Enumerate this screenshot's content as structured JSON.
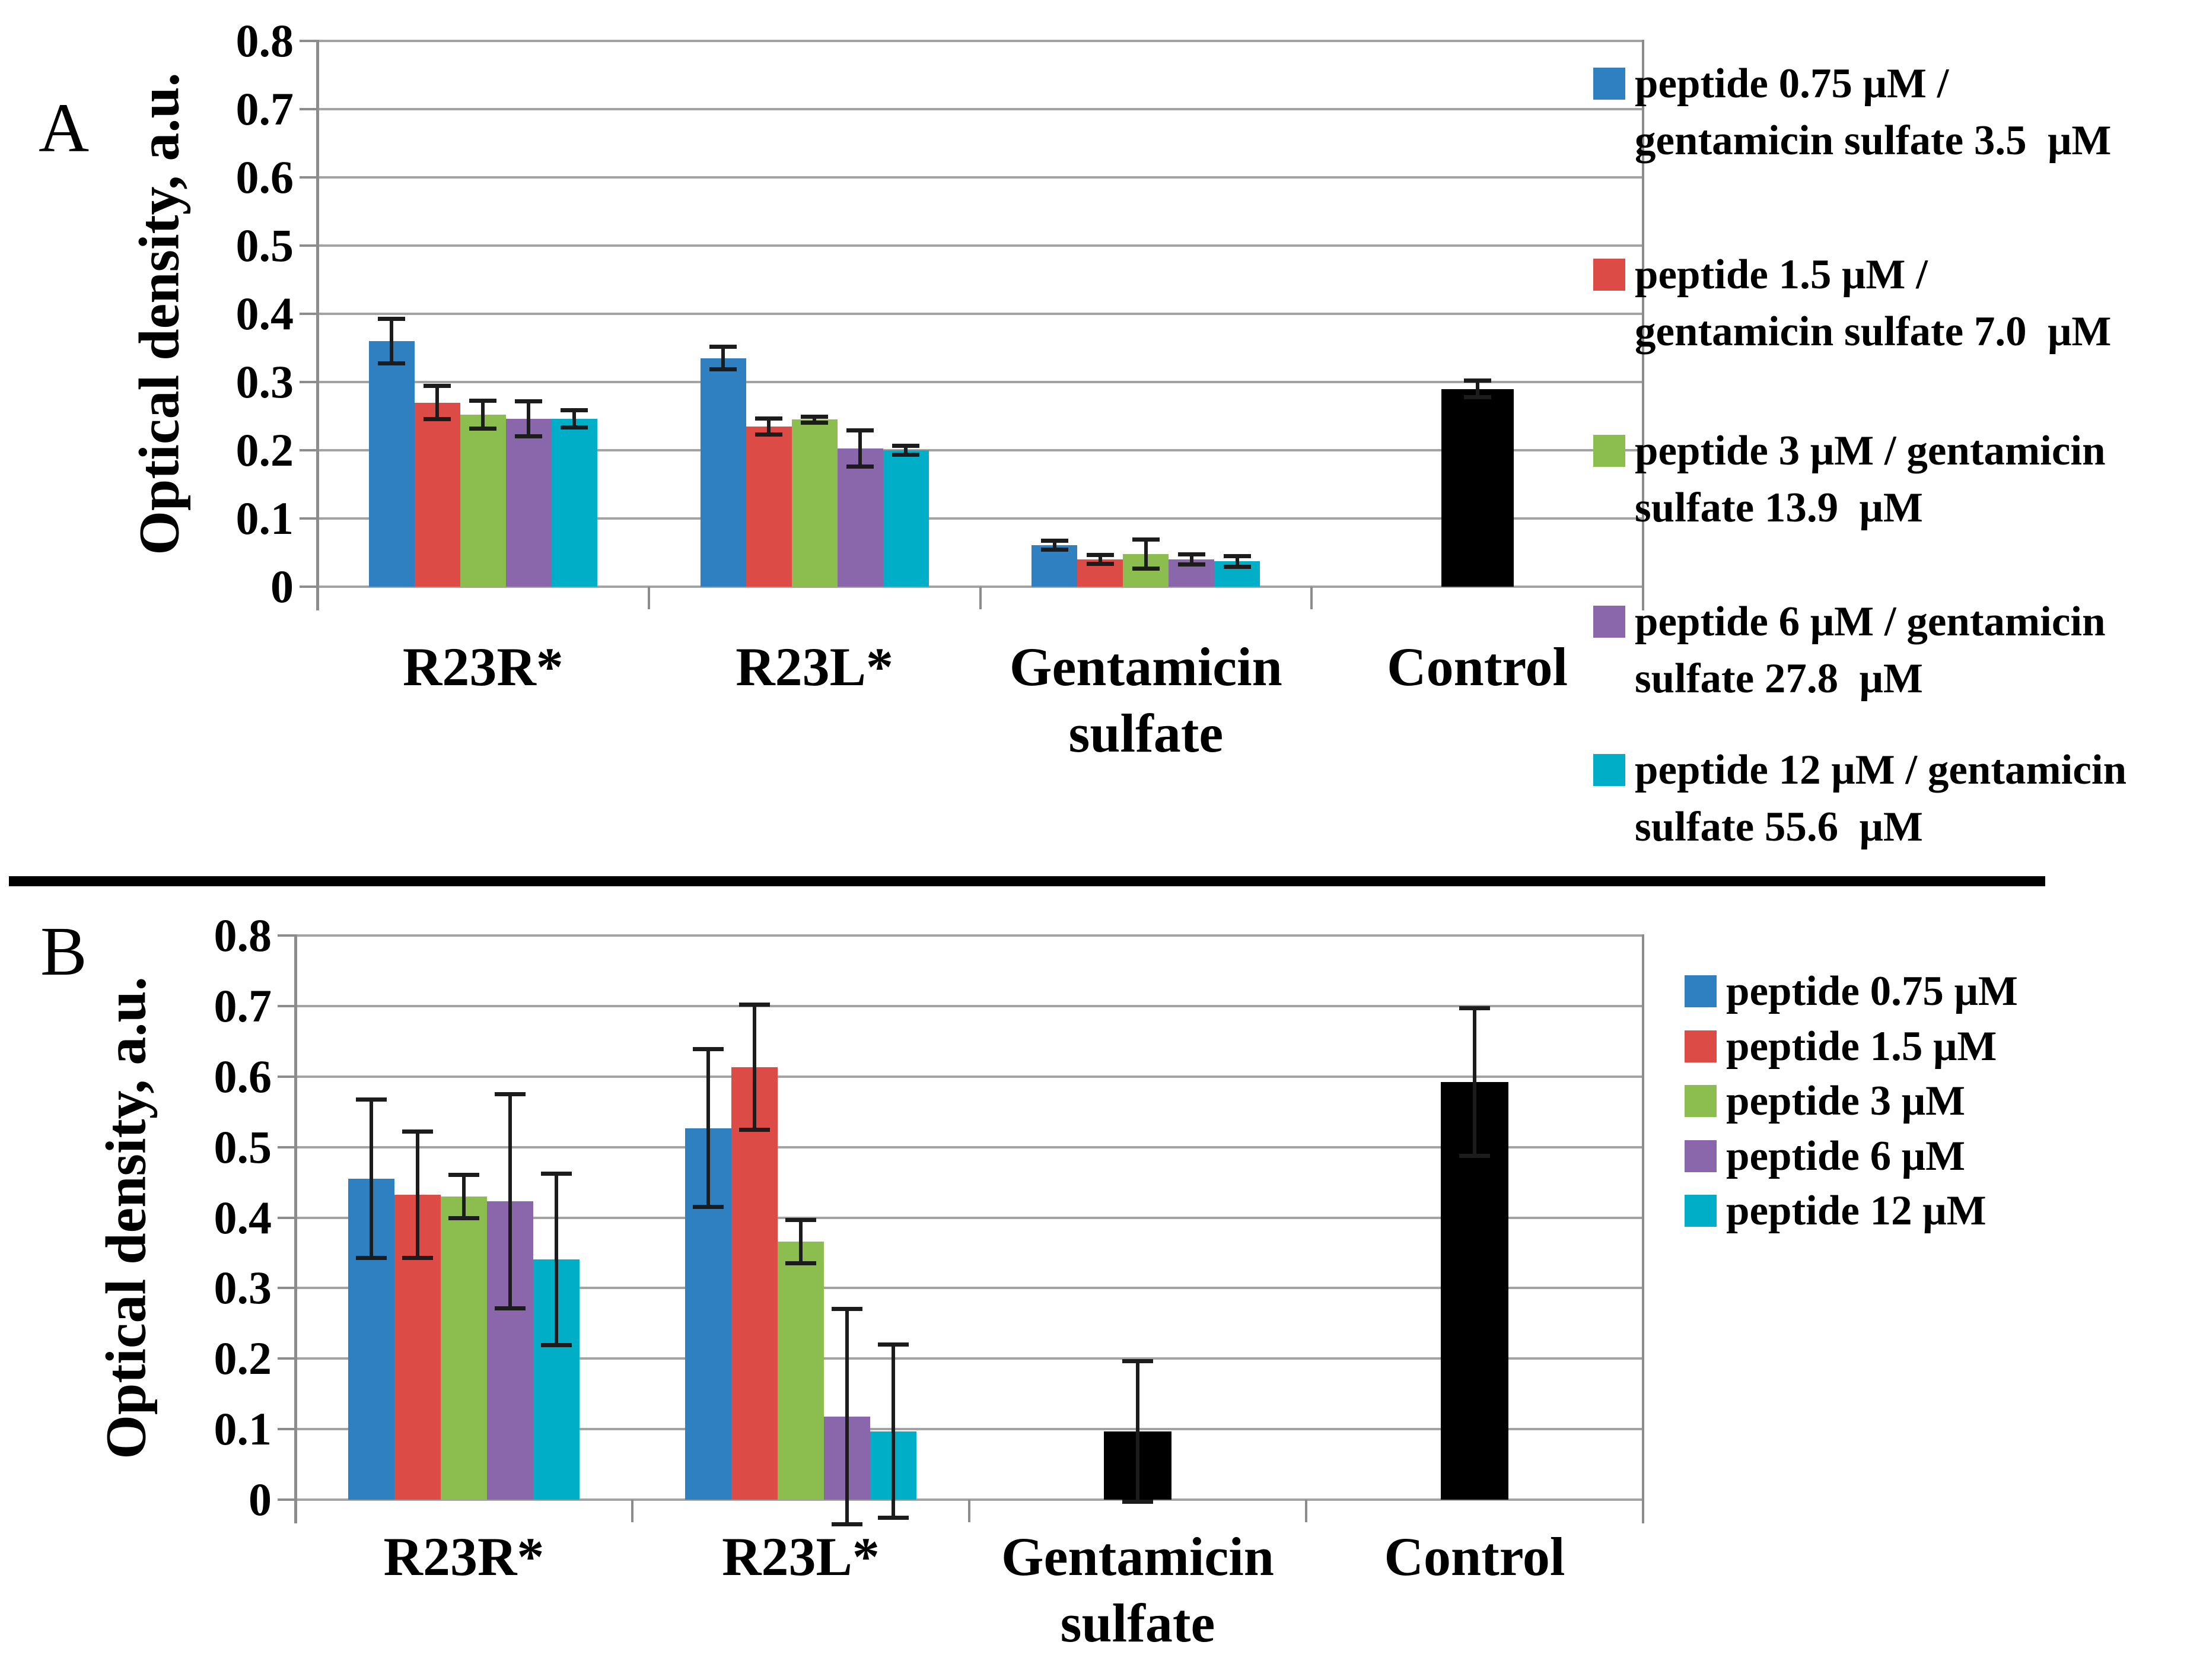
{
  "figure": {
    "colors": {
      "blue": "#2E80C1",
      "red": "#DC4B45",
      "green": "#8CBE4F",
      "purple": "#8A67AB",
      "cyan": "#00AEC7",
      "black": "#000000",
      "gridline": "#A3A3A3",
      "axis": "#8C8C8C",
      "error_bar": "#1C1C1C"
    },
    "panels": [
      {
        "id": "panel_a",
        "letter": "A",
        "y_axis_title": "Optical density, a.u.",
        "chart_data": {
          "type": "bar",
          "ylabel": "Optical density, a.u.",
          "ylim": [
            0,
            0.8
          ],
          "y_ticks": [
            "0",
            "0.1",
            "0.2",
            "0.3",
            "0.4",
            "0.5",
            "0.6",
            "0.7",
            "0.8"
          ],
          "grid": true,
          "legend_position": "right",
          "categories": [
            "R23R*",
            "R23L*",
            "Gentamicin sulfate",
            "Control"
          ],
          "category_lines": [
            [
              "R23R*"
            ],
            [
              "R23L*"
            ],
            [
              "Gentamicin",
              "sulfate"
            ],
            [
              "Control"
            ]
          ],
          "series": [
            {
              "name": "peptide 0.75 μM / gentamicin sulfate 3.5 μM",
              "color_key": "blue",
              "values": [
                0.36,
                0.335,
                0.061,
                null
              ],
              "errors": [
                0.033,
                0.017,
                0.007,
                null
              ]
            },
            {
              "name": "peptide 1.5 μM / gentamicin sulfate 7.0 μM",
              "color_key": "red",
              "values": [
                0.27,
                0.235,
                0.04,
                null
              ],
              "errors": [
                0.025,
                0.012,
                0.007,
                null
              ]
            },
            {
              "name": "peptide 3 μM / gentamicin sulfate 13.9 μM",
              "color_key": "green",
              "values": [
                0.252,
                0.245,
                0.048,
                null
              ],
              "errors": [
                0.021,
                0.005,
                0.022,
                null
              ]
            },
            {
              "name": "peptide 6 μM / gentamicin sulfate 27.8 μM",
              "color_key": "purple",
              "values": [
                0.246,
                0.203,
                0.04,
                null
              ],
              "errors": [
                0.026,
                0.027,
                0.008,
                null
              ]
            },
            {
              "name": "peptide 12 μM / gentamicin sulfate 55.6 μM",
              "color_key": "cyan",
              "values": [
                0.246,
                0.2,
                0.037,
                null
              ],
              "errors": [
                0.013,
                0.007,
                0.008,
                null
              ]
            },
            {
              "name": "",
              "color_key": "black",
              "values": [
                null,
                null,
                null,
                0.29
              ],
              "errors": [
                null,
                null,
                null,
                0.013
              ]
            }
          ]
        },
        "legend": [
          {
            "color_key": "blue",
            "lines": [
              "peptide 0.75 μM /",
              "gentamicin sulfate 3.5  μM"
            ]
          },
          {
            "color_key": "red",
            "lines": [
              "peptide 1.5 μM /",
              "gentamicin sulfate 7.0  μM"
            ]
          },
          {
            "color_key": "green",
            "lines": [
              "peptide 3 μM / gentamicin",
              "sulfate 13.9  μM"
            ]
          },
          {
            "color_key": "purple",
            "lines": [
              "peptide 6 μM / gentamicin",
              "sulfate 27.8  μM"
            ]
          },
          {
            "color_key": "cyan",
            "lines": [
              "peptide 12 μM / gentamicin",
              "sulfate 55.6  μM"
            ]
          }
        ]
      },
      {
        "id": "panel_b",
        "letter": "B",
        "y_axis_title": "Optical density, a.u.",
        "chart_data": {
          "type": "bar",
          "ylabel": "Optical density, a.u.",
          "ylim": [
            0,
            0.8
          ],
          "y_ticks": [
            "0",
            "0.1",
            "0.2",
            "0.3",
            "0.4",
            "0.5",
            "0.6",
            "0.7",
            "0.8"
          ],
          "grid": true,
          "legend_position": "right",
          "categories": [
            "R23R*",
            "R23L*",
            "Gentamicin sulfate",
            "Control"
          ],
          "category_lines": [
            [
              "R23R*"
            ],
            [
              "R23L*"
            ],
            [
              "Gentamicin",
              "sulfate"
            ],
            [
              "Control"
            ]
          ],
          "series": [
            {
              "name": "peptide 0.75 μM",
              "color_key": "blue",
              "values": [
                0.455,
                0.527,
                null,
                null
              ],
              "errors": [
                0.113,
                0.112,
                null,
                null
              ]
            },
            {
              "name": "peptide 1.5 μM",
              "color_key": "red",
              "values": [
                0.432,
                0.613,
                null,
                null
              ],
              "errors": [
                0.09,
                0.089,
                null,
                null
              ]
            },
            {
              "name": "peptide 3 μM",
              "color_key": "green",
              "values": [
                0.43,
                0.366,
                null,
                null
              ],
              "errors": [
                0.031,
                0.031,
                null,
                null
              ]
            },
            {
              "name": "peptide 6 μM",
              "color_key": "purple",
              "values": [
                0.423,
                0.118,
                null,
                null
              ],
              "errors": [
                0.152,
                0.153,
                null,
                null
              ]
            },
            {
              "name": "peptide 12 μM",
              "color_key": "cyan",
              "values": [
                0.341,
                0.097,
                null,
                null
              ],
              "errors": [
                0.122,
                0.123,
                null,
                null
              ]
            },
            {
              "name": "",
              "color_key": "black",
              "values": [
                null,
                null,
                0.097,
                0.592
              ],
              "errors": [
                null,
                null,
                0.1,
                0.105
              ]
            }
          ]
        },
        "legend": [
          {
            "color_key": "blue",
            "lines": [
              "peptide 0.75 μM"
            ]
          },
          {
            "color_key": "red",
            "lines": [
              "peptide 1.5 μM"
            ]
          },
          {
            "color_key": "green",
            "lines": [
              "peptide 3 μM"
            ]
          },
          {
            "color_key": "purple",
            "lines": [
              "peptide 6 μM"
            ]
          },
          {
            "color_key": "cyan",
            "lines": [
              "peptide 12 μM"
            ]
          }
        ]
      }
    ]
  }
}
